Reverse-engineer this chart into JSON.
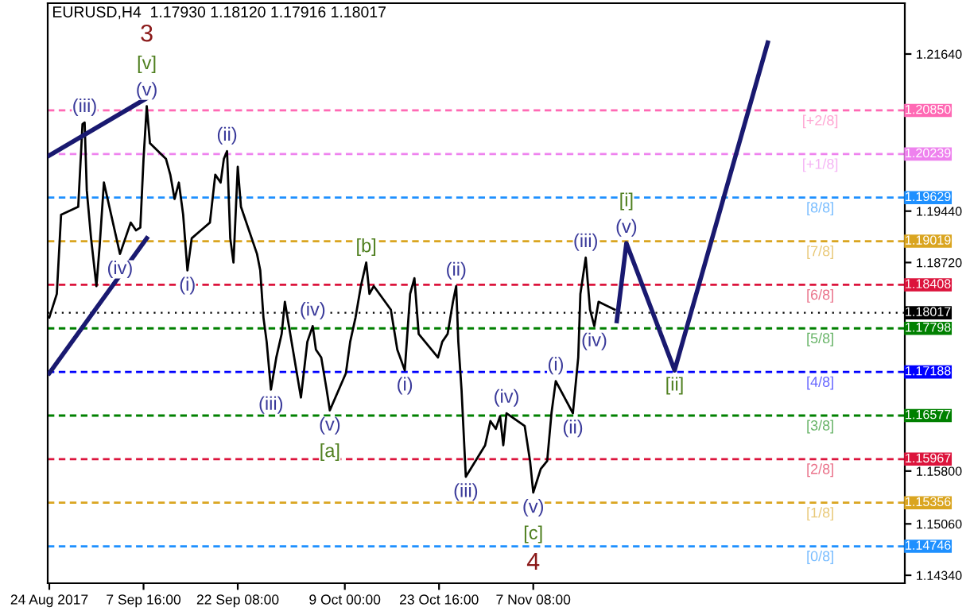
{
  "chart_data": {
    "type": "line",
    "title": "EURUSD,H4  1.17930 1.18120 1.17916 1.18017",
    "xlim": [
      "2017-08-23T18:00",
      "2018-01-04T04:00"
    ],
    "ylim": [
      1.14229,
      1.22352
    ],
    "xticks": [
      {
        "value": "2017-08-24T00:00",
        "label": "24 Aug 2017"
      },
      {
        "value": "2017-09-07T16:00",
        "label": "7 Sep 16:00"
      },
      {
        "value": "2017-09-22T08:00",
        "label": "22 Sep 08:00"
      },
      {
        "value": "2017-10-09T00:00",
        "label": "9 Oct 00:00"
      },
      {
        "value": "2017-10-23T16:00",
        "label": "23 Oct 16:00"
      },
      {
        "value": "2017-11-07T08:00",
        "label": "7 Nov 08:00"
      }
    ],
    "yticks": [
      {
        "value": 1.2164,
        "label": "1.21640"
      },
      {
        "value": 1.1944,
        "label": "1.19440"
      },
      {
        "value": 1.1872,
        "label": "1.18720"
      },
      {
        "value": 1.158,
        "label": "1.15800"
      },
      {
        "value": 1.1506,
        "label": "1.15060"
      },
      {
        "value": 1.1434,
        "label": "1.14340"
      }
    ],
    "grid": false,
    "legend": false,
    "marker": "none",
    "series": [
      {
        "color": "#000000",
        "x": [
          "2017-08-24T00:00",
          "2017-08-25T04:00",
          "2017-08-25T20:00",
          "2017-08-28T12:00",
          "2017-08-29T04:00",
          "2017-08-29T12:00",
          "2017-08-29T20:00",
          "2017-08-30T12:00",
          "2017-08-31T08:00",
          "2017-08-31T20:00",
          "2017-09-01T12:00",
          "2017-09-04T00:00",
          "2017-09-04T20:00",
          "2017-09-05T16:00",
          "2017-09-06T12:00",
          "2017-09-07T04:00",
          "2017-09-07T16:00",
          "2017-09-08T04:00",
          "2017-09-08T16:00",
          "2017-09-11T04:00",
          "2017-09-11T20:00",
          "2017-09-12T12:00",
          "2017-09-13T04:00",
          "2017-09-13T20:00",
          "2017-09-14T12:00",
          "2017-09-15T04:00",
          "2017-09-18T00:00",
          "2017-09-18T20:00",
          "2017-09-19T16:00",
          "2017-09-20T04:00",
          "2017-09-20T16:00",
          "2017-09-21T04:00",
          "2017-09-21T16:00",
          "2017-09-22T08:00",
          "2017-09-22T20:00",
          "2017-09-25T08:00",
          "2017-09-25T20:00",
          "2017-09-26T08:00",
          "2017-09-26T20:00",
          "2017-09-27T12:00",
          "2017-09-28T08:00",
          "2017-09-29T04:00",
          "2017-09-29T16:00",
          "2017-10-02T04:00",
          "2017-10-03T04:00",
          "2017-10-04T00:00",
          "2017-10-04T12:00",
          "2017-10-05T08:00",
          "2017-10-06T04:00",
          "2017-10-06T16:00",
          "2017-10-09T04:00",
          "2017-10-09T20:00",
          "2017-10-10T16:00",
          "2017-10-11T12:00",
          "2017-10-12T08:00",
          "2017-10-12T20:00",
          "2017-10-13T12:00",
          "2017-10-16T04:00",
          "2017-10-17T04:00",
          "2017-10-18T08:00",
          "2017-10-19T04:00",
          "2017-10-19T20:00",
          "2017-10-20T12:00",
          "2017-10-23T12:00",
          "2017-10-24T04:00",
          "2017-10-25T00:00",
          "2017-10-25T20:00",
          "2017-10-26T08:00",
          "2017-10-26T16:00",
          "2017-10-27T04:00",
          "2017-10-27T20:00",
          "2017-10-30T20:00",
          "2017-10-31T16:00",
          "2017-11-01T12:00",
          "2017-11-02T04:00",
          "2017-11-02T16:00",
          "2017-11-03T04:00",
          "2017-11-06T00:00",
          "2017-11-06T20:00",
          "2017-11-07T08:00",
          "2017-11-08T12:00",
          "2017-11-09T12:00",
          "2017-11-10T04:00",
          "2017-11-10T20:00",
          "2017-11-13T12:00",
          "2017-11-14T08:00",
          "2017-11-14T16:00",
          "2017-11-15T12:00",
          "2017-11-16T04:00",
          "2017-11-16T20:00",
          "2017-11-17T12:00",
          "2017-11-20T00:00"
        ],
        "values": [
          1.1795,
          1.1828,
          1.1939,
          1.195,
          1.2066,
          1.2068,
          1.1973,
          1.1906,
          1.1839,
          1.1895,
          1.1984,
          1.1884,
          1.1906,
          1.1928,
          1.1917,
          1.1921,
          1.2017,
          1.2091,
          1.2039,
          1.2017,
          1.1995,
          1.1961,
          1.1984,
          1.1939,
          1.1861,
          1.1906,
          1.1928,
          1.1995,
          1.1984,
          1.2017,
          1.2028,
          1.1906,
          1.1872,
          1.2006,
          1.195,
          1.1884,
          1.1861,
          1.1795,
          1.1761,
          1.1694,
          1.1739,
          1.1772,
          1.1817,
          1.1683,
          1.1761,
          1.1783,
          1.175,
          1.1739,
          1.1694,
          1.1665,
          1.1717,
          1.1761,
          1.1795,
          1.1839,
          1.1872,
          1.1828,
          1.1839,
          1.1806,
          1.175,
          1.1721,
          1.1828,
          1.185,
          1.1772,
          1.1739,
          1.1761,
          1.1772,
          1.1817,
          1.1839,
          1.1761,
          1.1694,
          1.1572,
          1.1616,
          1.165,
          1.1639,
          1.1657,
          1.1616,
          1.1661,
          1.1643,
          1.1594,
          1.155,
          1.1583,
          1.1594,
          1.1661,
          1.1706,
          1.1661,
          1.1739,
          1.1828,
          1.1879,
          1.1806,
          1.1783,
          1.1817,
          1.1806
        ]
      },
      {
        "color": "#191970",
        "x": [
          "2017-11-20T08:00",
          "2017-11-21T20:00",
          "2017-11-29T08:00",
          "2017-12-13T20:00"
        ],
        "values": [
          1.179,
          1.1899,
          1.1721,
          1.218
        ]
      },
      {
        "color": "#191970",
        "x": [
          "2017-08-24T00:00",
          "2017-09-08T12:00"
        ],
        "values": [
          1.2022,
          1.2104
        ]
      },
      {
        "color": "#191970",
        "x": [
          "2017-08-24T00:00",
          "2017-09-08T04:00"
        ],
        "values": [
          1.1717,
          1.1906
        ]
      }
    ],
    "ref_lines": [
      {
        "axis": "y",
        "value": 1.2085,
        "label": "1.20850",
        "color": "#ff69b4",
        "line_style": "dashed"
      },
      {
        "axis": "y",
        "value": 1.20239,
        "label": "1.20239",
        "color": "#ee82ee",
        "line_style": "dashed"
      },
      {
        "axis": "y",
        "value": 1.19629,
        "label": "1.19629",
        "color": "#1e90ff",
        "line_style": "dashed"
      },
      {
        "axis": "y",
        "value": 1.19019,
        "label": "1.19019",
        "color": "#daa520",
        "line_style": "dashed"
      },
      {
        "axis": "y",
        "value": 1.18408,
        "label": "1.18408",
        "color": "#dc143c",
        "line_style": "dashed"
      },
      {
        "axis": "y",
        "value": 1.17798,
        "label": "1.17798",
        "color": "#008000",
        "line_style": "dashed"
      },
      {
        "axis": "y",
        "value": 1.17188,
        "label": "1.17188",
        "color": "#0000ff",
        "line_style": "dashed"
      },
      {
        "axis": "y",
        "value": 1.16577,
        "label": "1.16577",
        "color": "#008000",
        "line_style": "dashed"
      },
      {
        "axis": "y",
        "value": 1.15967,
        "label": "1.15967",
        "color": "#dc143c",
        "line_style": "dashed"
      },
      {
        "axis": "y",
        "value": 1.15356,
        "label": "1.15356",
        "color": "#daa520",
        "line_style": "dashed"
      },
      {
        "axis": "y",
        "value": 1.14746,
        "label": "1.14746",
        "color": "#1e90ff",
        "line_style": "dashed"
      },
      {
        "axis": "y",
        "value": 1.18017,
        "label": "1.18017",
        "color": "#000000",
        "line_style": "dotted"
      }
    ],
    "annotations": [
      {
        "text": "(iii)",
        "x": "2017-08-29T12:00",
        "y": 1.2068
      },
      {
        "text": "(v)",
        "x": "2017-09-08T04:00",
        "y": 1.2091
      },
      {
        "text": "(ii)",
        "x": "2017-09-20T16:00",
        "y": 1.2028
      },
      {
        "text": "(i)",
        "x": "2017-09-14T12:00",
        "y": 1.1861
      },
      {
        "text": "(iv)",
        "x": "2017-09-04T00:00",
        "y": 1.1884
      },
      {
        "text": "(iv)",
        "x": "2017-10-04T00:00",
        "y": 1.1783
      },
      {
        "text": "(ii)",
        "x": "2017-10-26T08:00",
        "y": 1.1839
      },
      {
        "text": "(iii)",
        "x": "2017-09-27T12:00",
        "y": 1.1694
      },
      {
        "text": "(v)",
        "x": "2017-10-06T16:00",
        "y": 1.1665
      },
      {
        "text": "(i)",
        "x": "2017-10-18T08:00",
        "y": 1.1721
      },
      {
        "text": "(iv)",
        "x": "2017-11-03T04:00",
        "y": 1.1661
      },
      {
        "text": "(iii)",
        "x": "2017-10-27T20:00",
        "y": 1.1572
      },
      {
        "text": "(v)",
        "x": "2017-11-07T08:00",
        "y": 1.155
      },
      {
        "text": "(i)",
        "x": "2017-11-10T20:00",
        "y": 1.1706
      },
      {
        "text": "(ii)",
        "x": "2017-11-13T12:00",
        "y": 1.1661
      },
      {
        "text": "(iii)",
        "x": "2017-11-15T12:00",
        "y": 1.1879
      },
      {
        "text": "(iv)",
        "x": "2017-11-16T20:00",
        "y": 1.1783
      },
      {
        "text": "(v)",
        "x": "2017-11-21T20:00",
        "y": 1.1899
      },
      {
        "text": "[v]",
        "x": "2017-09-08T04:00",
        "y": 1.2091
      },
      {
        "text": "[b]",
        "x": "2017-10-12T08:00",
        "y": 1.1872
      },
      {
        "text": "[a]",
        "x": "2017-10-06T16:00",
        "y": 1.1665
      },
      {
        "text": "[c]",
        "x": "2017-11-07T08:00",
        "y": 1.155
      },
      {
        "text": "[i]",
        "x": "2017-11-21T20:00",
        "y": 1.1899
      },
      {
        "text": "[ii]",
        "x": "2017-11-29T08:00",
        "y": 1.1721
      },
      {
        "text": "3",
        "x": "2017-09-08T04:00",
        "y": 1.2091
      },
      {
        "text": "4",
        "x": "2017-11-07T08:00",
        "y": 1.155
      },
      {
        "text": "[+2/8]",
        "x": "2017-12-22T00:00",
        "y": 1.2085
      },
      {
        "text": "[+1/8]",
        "x": "2017-12-22T00:00",
        "y": 1.20239
      },
      {
        "text": "[8/8]",
        "x": "2017-12-22T00:00",
        "y": 1.19629
      },
      {
        "text": "[7/8]",
        "x": "2017-12-22T00:00",
        "y": 1.19019
      },
      {
        "text": "[6/8]",
        "x": "2017-12-22T00:00",
        "y": 1.18408
      },
      {
        "text": "[5/8]",
        "x": "2017-12-22T00:00",
        "y": 1.17798
      },
      {
        "text": "[4/8]",
        "x": "2017-12-22T00:00",
        "y": 1.17188
      },
      {
        "text": "[3/8]",
        "x": "2017-12-22T00:00",
        "y": 1.16577
      },
      {
        "text": "[2/8]",
        "x": "2017-12-22T00:00",
        "y": 1.15967
      },
      {
        "text": "[1/8]",
        "x": "2017-12-22T00:00",
        "y": 1.15356
      },
      {
        "text": "[0/8]",
        "x": "2017-12-22T00:00",
        "y": 1.14746
      }
    ]
  }
}
